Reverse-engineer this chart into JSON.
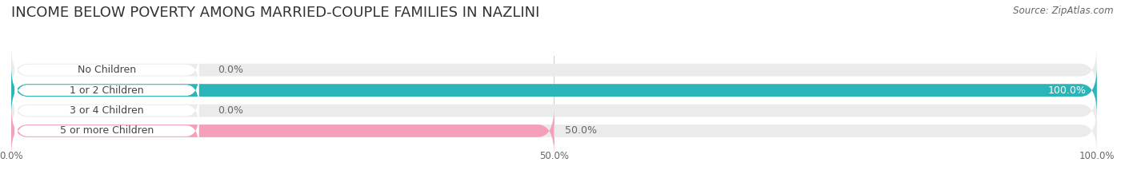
{
  "title": "INCOME BELOW POVERTY AMONG MARRIED-COUPLE FAMILIES IN NAZLINI",
  "source": "Source: ZipAtlas.com",
  "categories": [
    "No Children",
    "1 or 2 Children",
    "3 or 4 Children",
    "5 or more Children"
  ],
  "values": [
    0.0,
    100.0,
    0.0,
    50.0
  ],
  "bar_colors": [
    "#d4b8d8",
    "#2ab5b8",
    "#b0b8e0",
    "#f5a0b8"
  ],
  "xlim": [
    0,
    100
  ],
  "xtick_labels": [
    "0.0%",
    "50.0%",
    "100.0%"
  ],
  "background_color": "#ffffff",
  "bar_track_color": "#ebebeb",
  "title_fontsize": 13,
  "bar_height": 0.62,
  "bar_label_fontsize": 9,
  "cat_label_fontsize": 9
}
